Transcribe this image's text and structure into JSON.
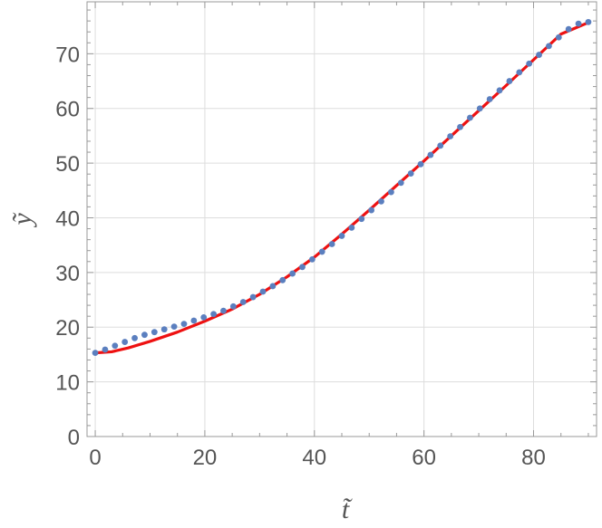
{
  "chart_data": {
    "type": "scatter",
    "title": "",
    "xlabel": "t̃",
    "ylabel": "ỹ",
    "xlim": [
      -1.5,
      91.5
    ],
    "ylim": [
      0,
      79.5
    ],
    "xticks": [
      0,
      20,
      40,
      60,
      80
    ],
    "yticks": [
      0,
      10,
      20,
      30,
      40,
      50,
      60,
      70
    ],
    "grid": true,
    "legend": "none",
    "colors": {
      "points": "#5b7fbf",
      "curve": "#ee1111",
      "grid": "#dddddd",
      "frame": "#999999",
      "text": "#555555"
    },
    "series": [
      {
        "kind": "points",
        "x": [
          0,
          1.8,
          3.6,
          5.4,
          7.2,
          9,
          10.8,
          12.6,
          14.4,
          16.2,
          18,
          19.8,
          21.6,
          23.4,
          25.2,
          27,
          28.8,
          30.6,
          32.4,
          34.2,
          36,
          37.8,
          39.6,
          41.4,
          43.2,
          45,
          46.8,
          48.6,
          50.4,
          52.2,
          54,
          55.8,
          57.6,
          59.4,
          61.2,
          63,
          64.8,
          66.6,
          68.4,
          70.2,
          72,
          73.8,
          75.6,
          77.4,
          79.2,
          81,
          82.8,
          84.6,
          86.4,
          88.2,
          90
        ],
        "y": [
          15.3,
          15.9,
          16.6,
          17.3,
          18.0,
          18.6,
          19.1,
          19.6,
          20.1,
          20.6,
          21.2,
          21.8,
          22.4,
          23.0,
          23.8,
          24.6,
          25.5,
          26.5,
          27.5,
          28.6,
          29.8,
          31.0,
          32.4,
          33.8,
          35.2,
          36.7,
          38.2,
          39.8,
          41.4,
          43.0,
          44.7,
          46.4,
          48.1,
          49.8,
          51.5,
          53.2,
          54.9,
          56.6,
          58.3,
          60.0,
          61.7,
          63.3,
          65.0,
          66.6,
          68.2,
          69.8,
          71.4,
          73.0,
          74.5,
          75.5,
          75.8
        ]
      },
      {
        "kind": "curve",
        "x": [
          0,
          3,
          6,
          10,
          15,
          20,
          25,
          30,
          35,
          40,
          45,
          50,
          55,
          60,
          65,
          70,
          75,
          80,
          85,
          90
        ],
        "y": [
          15.3,
          15.5,
          16.2,
          17.4,
          19.1,
          21.1,
          23.3,
          26.0,
          29.2,
          32.8,
          37.0,
          41.4,
          45.9,
          50.4,
          55.0,
          59.6,
          64.2,
          68.9,
          73.6,
          75.7
        ]
      }
    ]
  }
}
